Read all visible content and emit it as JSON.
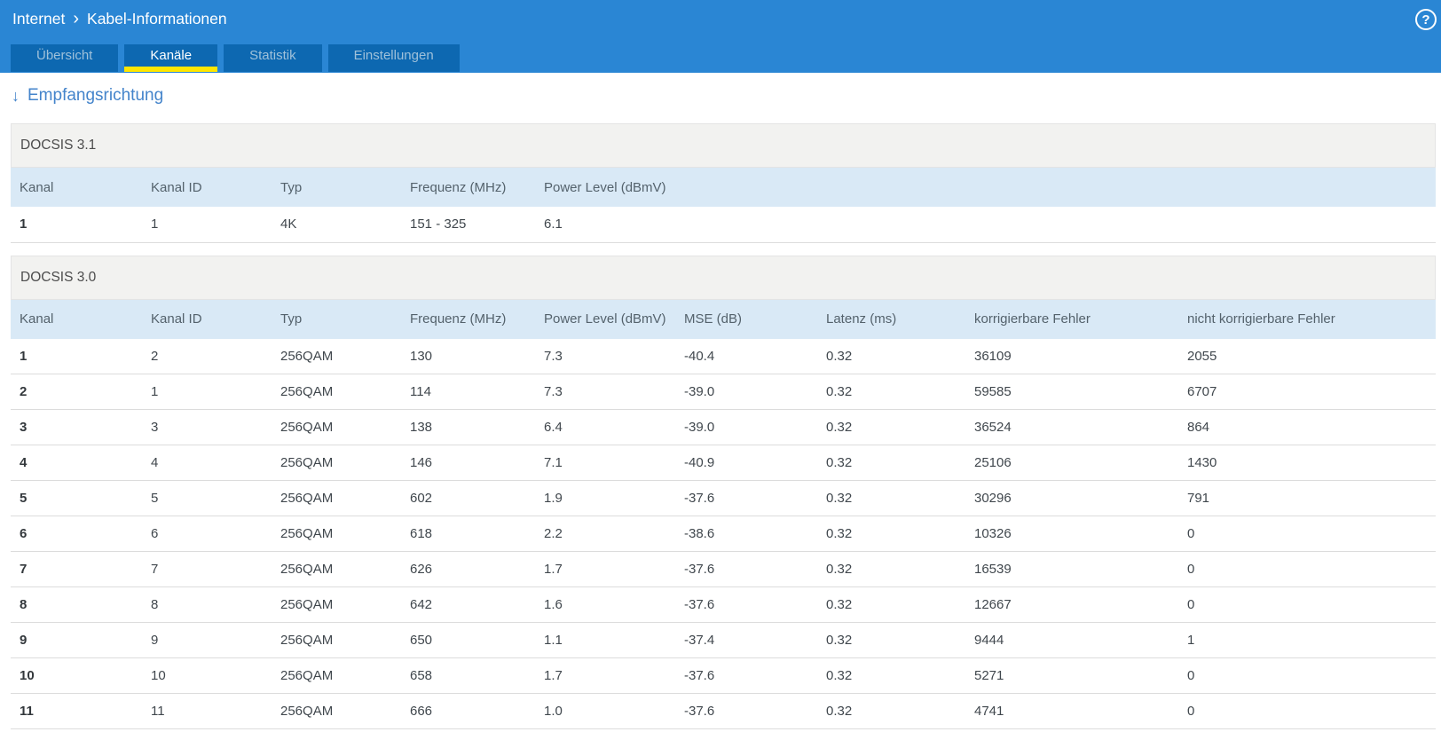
{
  "header": {
    "breadcrumb": {
      "items": [
        "Internet",
        "Kabel-Informationen"
      ],
      "separator": "›"
    },
    "tabs": [
      {
        "label": "Übersicht",
        "active": false
      },
      {
        "label": "Kanäle",
        "active": true
      },
      {
        "label": "Statistik",
        "active": false
      },
      {
        "label": "Einstellungen",
        "active": false
      }
    ],
    "help_icon_glyph": "?"
  },
  "page": {
    "direction_arrow": "↓",
    "section_heading": "Empfangsrichtung"
  },
  "tables": [
    {
      "title": "DOCSIS 3.1",
      "columns": [
        "Kanal",
        "Kanal ID",
        "Typ",
        "Frequenz (MHz)",
        "Power Level (dBmV)"
      ],
      "rows": [
        [
          "1",
          "1",
          "4K",
          "151 - 325",
          "6.1"
        ]
      ]
    },
    {
      "title": "DOCSIS 3.0",
      "columns": [
        "Kanal",
        "Kanal ID",
        "Typ",
        "Frequenz (MHz)",
        "Power Level (dBmV)",
        "MSE (dB)",
        "Latenz (ms)",
        "korrigierbare Fehler",
        "nicht korrigierbare Fehler"
      ],
      "rows": [
        [
          "1",
          "2",
          "256QAM",
          "130",
          "7.3",
          "-40.4",
          "0.32",
          "36109",
          "2055"
        ],
        [
          "2",
          "1",
          "256QAM",
          "114",
          "7.3",
          "-39.0",
          "0.32",
          "59585",
          "6707"
        ],
        [
          "3",
          "3",
          "256QAM",
          "138",
          "6.4",
          "-39.0",
          "0.32",
          "36524",
          "864"
        ],
        [
          "4",
          "4",
          "256QAM",
          "146",
          "7.1",
          "-40.9",
          "0.32",
          "25106",
          "1430"
        ],
        [
          "5",
          "5",
          "256QAM",
          "602",
          "1.9",
          "-37.6",
          "0.32",
          "30296",
          "791"
        ],
        [
          "6",
          "6",
          "256QAM",
          "618",
          "2.2",
          "-38.6",
          "0.32",
          "10326",
          "0"
        ],
        [
          "7",
          "7",
          "256QAM",
          "626",
          "1.7",
          "-37.6",
          "0.32",
          "16539",
          "0"
        ],
        [
          "8",
          "8",
          "256QAM",
          "642",
          "1.6",
          "-37.6",
          "0.32",
          "12667",
          "0"
        ],
        [
          "9",
          "9",
          "256QAM",
          "650",
          "1.1",
          "-37.4",
          "0.32",
          "9444",
          "1"
        ],
        [
          "10",
          "10",
          "256QAM",
          "658",
          "1.7",
          "-37.6",
          "0.32",
          "5271",
          "0"
        ],
        [
          "11",
          "11",
          "256QAM",
          "666",
          "1.0",
          "-37.6",
          "0.32",
          "4741",
          "0"
        ]
      ]
    }
  ],
  "colors": {
    "header_blue": "#2a86d4",
    "tab_blue": "#0d68b1",
    "active_tab_underline": "#ffe600",
    "heading_blue": "#4484cb",
    "section_band_bg": "#f2f2f0",
    "column_header_bg": "#d9e9f6"
  }
}
